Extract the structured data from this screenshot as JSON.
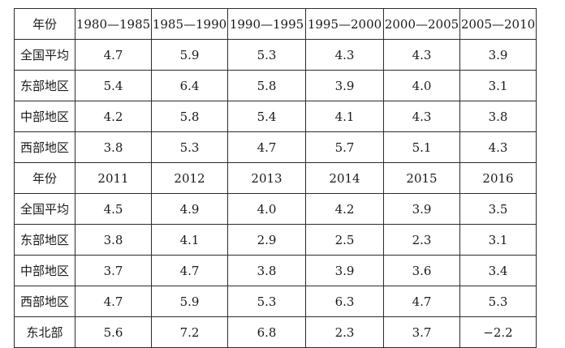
{
  "table": {
    "sections": [
      {
        "header": {
          "label": "年份",
          "columns": [
            "1980—1985",
            "1985—1990",
            "1990—1995",
            "1995—2000",
            "2000—2005",
            "2005—2010"
          ]
        },
        "rows": [
          {
            "label": "全国平均",
            "values": [
              "4.7",
              "5.9",
              "5.3",
              "4.3",
              "4.3",
              "3.9"
            ]
          },
          {
            "label": "东部地区",
            "values": [
              "5.4",
              "6.4",
              "5.8",
              "3.9",
              "4.0",
              "3.1"
            ]
          },
          {
            "label": "中部地区",
            "values": [
              "4.2",
              "5.8",
              "5.4",
              "4.1",
              "4.3",
              "3.8"
            ]
          },
          {
            "label": "西部地区",
            "values": [
              "3.8",
              "5.3",
              "4.7",
              "5.7",
              "5.1",
              "4.3"
            ]
          }
        ]
      },
      {
        "header": {
          "label": "年份",
          "columns": [
            "2011",
            "2012",
            "2013",
            "2014",
            "2015",
            "2016"
          ]
        },
        "rows": [
          {
            "label": "全国平均",
            "values": [
              "4.5",
              "4.9",
              "4.0",
              "4.2",
              "3.9",
              "3.5"
            ]
          },
          {
            "label": "东部地区",
            "values": [
              "3.8",
              "4.1",
              "2.9",
              "2.5",
              "2.3",
              "3.1"
            ]
          },
          {
            "label": "中部地区",
            "values": [
              "3.7",
              "4.7",
              "3.8",
              "3.9",
              "3.6",
              "3.4"
            ]
          },
          {
            "label": "西部地区",
            "values": [
              "4.7",
              "5.9",
              "5.3",
              "6.3",
              "4.7",
              "5.3"
            ]
          },
          {
            "label": "东北部",
            "values": [
              "5.6",
              "7.2",
              "6.8",
              "2.3",
              "3.7",
              "−2.2"
            ]
          }
        ]
      }
    ]
  }
}
